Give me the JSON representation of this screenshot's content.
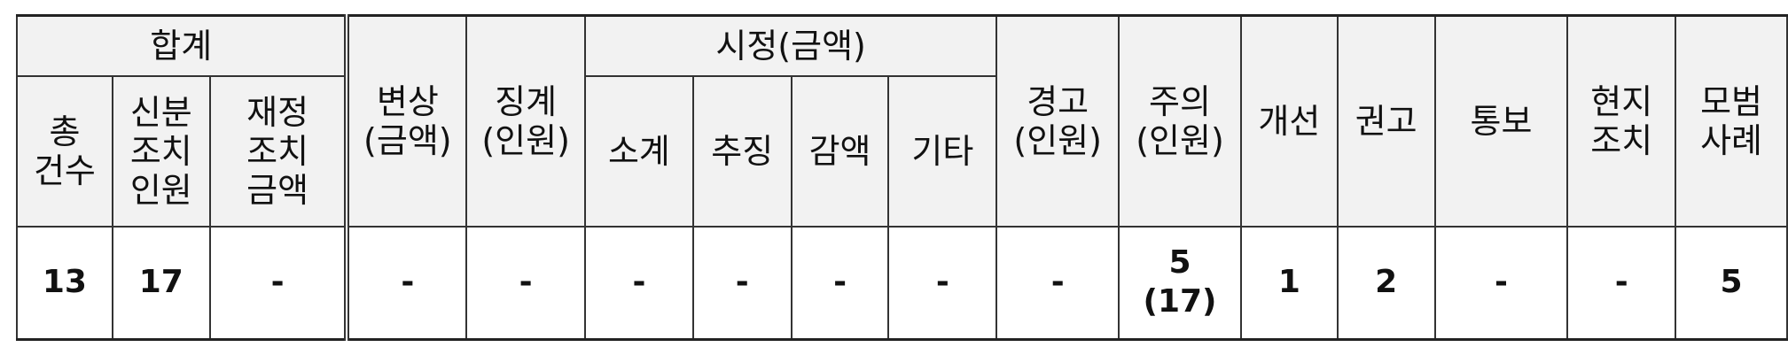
{
  "table": {
    "headers": {
      "total_group": "합계",
      "total_count": "총\n건수",
      "status_measure_persons": "신분\n조치\n인원",
      "financial_measure_amount": "재정\n조치\n금액",
      "compensation": "변상\n(금액)",
      "discipline": "징계\n(인원)",
      "correction_group": "시정(금액)",
      "subtotal": "소계",
      "recovery": "추징",
      "reduction": "감액",
      "other": "기타",
      "warning": "경고\n(인원)",
      "caution": "주의\n(인원)",
      "improvement": "개선",
      "recommendation": "권고",
      "notice": "통보",
      "onsite_action": "현지\n조치",
      "model_case": "모범\n사례"
    },
    "values": {
      "total_count": "13",
      "status_measure_persons": "17",
      "financial_measure_amount": "-",
      "compensation": "-",
      "discipline": "-",
      "subtotal": "-",
      "recovery": "-",
      "reduction": "-",
      "other": "-",
      "warning": "-",
      "caution": "5\n(17)",
      "improvement": "1",
      "recommendation": "2",
      "notice": "-",
      "onsite_action": "-",
      "model_case": "5"
    }
  }
}
